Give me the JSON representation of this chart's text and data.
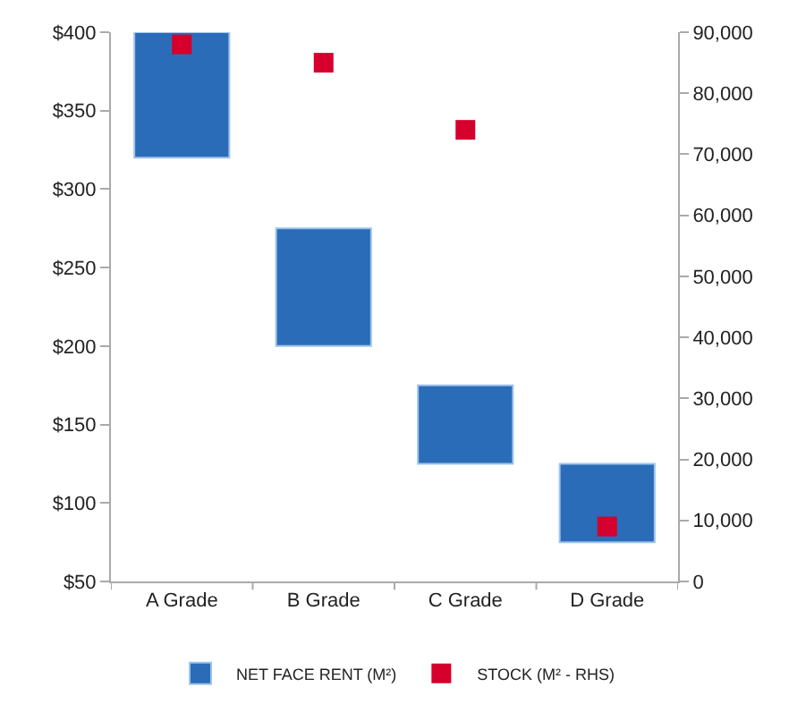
{
  "chart_data": {
    "type": "bar",
    "categories": [
      "A Grade",
      "B Grade",
      "C Grade",
      "D Grade"
    ],
    "series": [
      {
        "name": "NET FACE RENT (M²)",
        "color": "#2b6cb8",
        "base": [
          320,
          200,
          125,
          75
        ],
        "values": [
          80,
          75,
          50,
          50
        ]
      },
      {
        "name": "STOCK (M² - RHS)",
        "type": "scatter",
        "axis": "y2",
        "marker": "square",
        "color": "#d5002c",
        "values": [
          88000,
          85000,
          74000,
          9000
        ]
      }
    ],
    "ylim": [
      50,
      400
    ],
    "yticks": [
      {
        "value": 50,
        "label": "$50"
      },
      {
        "value": 100,
        "label": "$100"
      },
      {
        "value": 150,
        "label": "$150"
      },
      {
        "value": 200,
        "label": "$200"
      },
      {
        "value": 250,
        "label": "$250"
      },
      {
        "value": 300,
        "label": "$300"
      },
      {
        "value": 350,
        "label": "$350"
      },
      {
        "value": 400,
        "label": "$400"
      }
    ],
    "y2lim": [
      0,
      90000
    ],
    "y2ticks": [
      {
        "value": 0,
        "label": "0"
      },
      {
        "value": 10000,
        "label": "10,000"
      },
      {
        "value": 20000,
        "label": "20,000"
      },
      {
        "value": 30000,
        "label": "30,000"
      },
      {
        "value": 40000,
        "label": "40,000"
      },
      {
        "value": 50000,
        "label": "50,000"
      },
      {
        "value": 60000,
        "label": "60,000"
      },
      {
        "value": 70000,
        "label": "70,000"
      },
      {
        "value": 80000,
        "label": "80,000"
      },
      {
        "value": 90000,
        "label": "90,000"
      }
    ],
    "legend": "bottom"
  }
}
